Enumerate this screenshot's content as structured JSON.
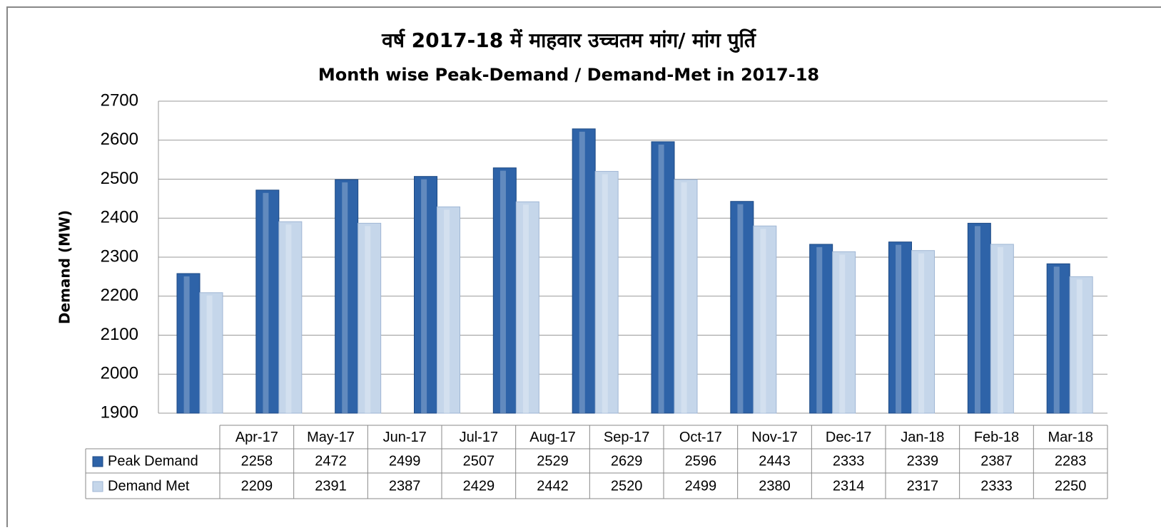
{
  "chart_data": {
    "type": "bar",
    "title": "वर्ष 2017-18 में माहवार उच्चतम मांग/ मांग पुर्ति",
    "subtitle": "Month wise Peak-Demand / Demand-Met in 2017-18",
    "y_label": "Demand (MW)",
    "categories": [
      "Apr-17",
      "May-17",
      "Jun-17",
      "Jul-17",
      "Aug-17",
      "Sep-17",
      "Oct-17",
      "Nov-17",
      "Dec-17",
      "Jan-18",
      "Feb-18",
      "Mar-18"
    ],
    "series": [
      {
        "name": "Peak Demand",
        "color": "#2e63a8",
        "values": [
          2258,
          2472,
          2499,
          2507,
          2529,
          2629,
          2596,
          2443,
          2333,
          2339,
          2387,
          2283
        ]
      },
      {
        "name": "Demand Met",
        "color": "#c5d6ea",
        "values": [
          2209,
          2391,
          2387,
          2429,
          2442,
          2520,
          2499,
          2380,
          2314,
          2317,
          2333,
          2250
        ]
      }
    ],
    "ylim": [
      1900,
      2700
    ],
    "yticks": [
      1900,
      2000,
      2100,
      2200,
      2300,
      2400,
      2500,
      2600,
      2700
    ],
    "grid": true
  }
}
